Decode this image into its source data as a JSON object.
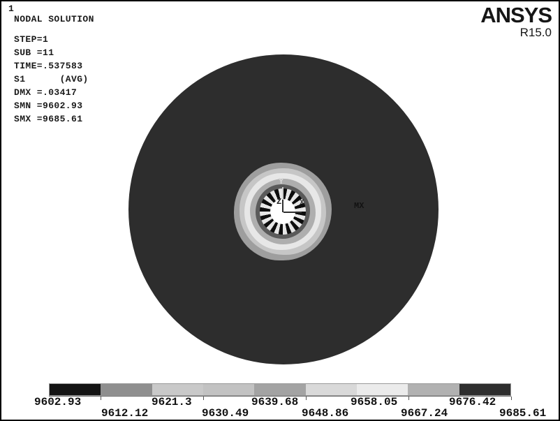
{
  "window": {
    "page_number": "1",
    "title": "NODAL SOLUTION"
  },
  "logo": {
    "brand": "ANSYS",
    "version": "R15.0"
  },
  "solution_info": {
    "lines": [
      "STEP=1",
      "SUB =11",
      "TIME=.537583",
      "S1      (AVG)",
      "DMX =.03417",
      "SMN =9602.93",
      "SMX =9685.61"
    ]
  },
  "plot": {
    "mx_marker": "MX",
    "triad": {
      "x": "X",
      "y": "Y",
      "z": "Z"
    }
  },
  "chart_data": {
    "type": "heatmap",
    "title": "NODAL SOLUTION",
    "result_item": "S1 (AVG)",
    "step": 1,
    "substep": 11,
    "time": 0.537583,
    "dmx": 0.03417,
    "smn": 9602.93,
    "smx": 9685.61,
    "legend": {
      "boundary_labels": [
        "9602.93",
        "9612.12",
        "9621.3",
        "9630.49",
        "9639.68",
        "9648.86",
        "9658.05",
        "9667.24",
        "9676.42",
        "9685.61"
      ],
      "boundary_values": [
        9602.93,
        9612.12,
        9621.3,
        9630.49,
        9639.68,
        9648.86,
        9658.05,
        9667.24,
        9676.42,
        9685.61
      ],
      "band_colors": [
        "#141414",
        "#8f8f8f",
        "#c9c9c9",
        "#c2c2c2",
        "#a3a3a3",
        "#d9d9d9",
        "#ebebeb",
        "#b1b1b1",
        "#2e2e2e"
      ],
      "labels_top_row": [
        "9602.93",
        "9621.3",
        "9639.68",
        "9658.05",
        "9676.42"
      ],
      "labels_bottom_row": [
        "9612.12",
        "9630.49",
        "9648.86",
        "9667.24",
        "9685.61"
      ],
      "disc_color": "#2d2d2d"
    }
  }
}
